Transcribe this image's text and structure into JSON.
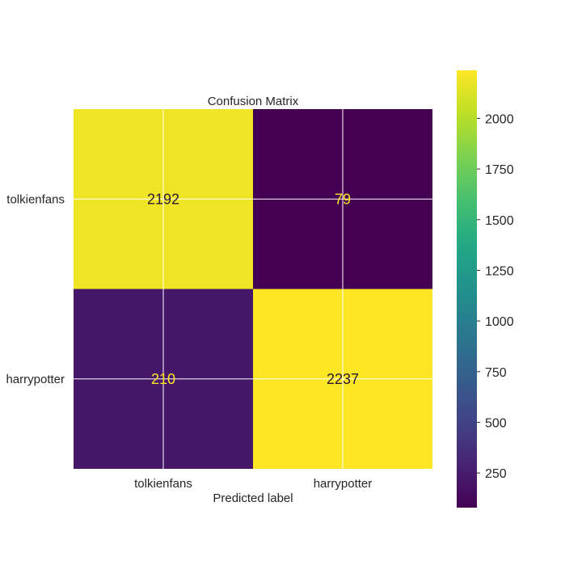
{
  "chart_data": {
    "type": "heatmap",
    "title": "Confusion Matrix",
    "xlabel": "Predicted label",
    "ylabel": "",
    "x_categories": [
      "tolkienfans",
      "harrypotter"
    ],
    "y_categories": [
      "tolkienfans",
      "harrypotter"
    ],
    "matrix": [
      [
        2192,
        79
      ],
      [
        210,
        2237
      ]
    ],
    "colormap": "viridis",
    "grid": true,
    "colorbar": {
      "position": "right",
      "range": [
        79,
        2237
      ],
      "ticks": [
        250,
        500,
        750,
        1000,
        1250,
        1500,
        1750,
        2000
      ]
    }
  }
}
